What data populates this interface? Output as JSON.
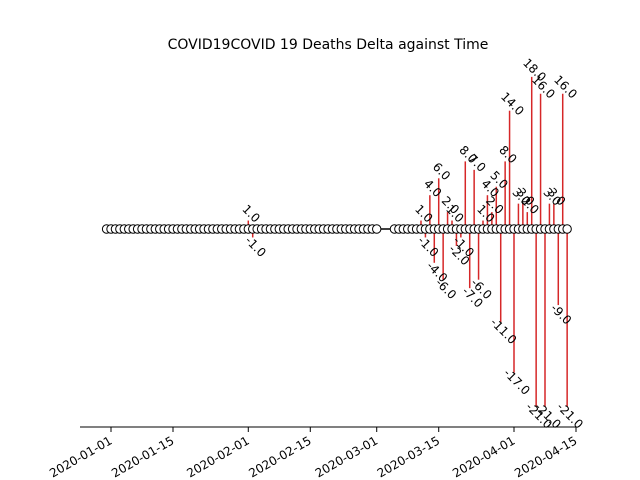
{
  "chart_data": {
    "type": "stem",
    "title": "COVID19COVID 19 Deaths Delta against Time",
    "xlabel": "",
    "ylabel": "",
    "x_axis": {
      "type": "date",
      "range": [
        "2019-12-25",
        "2020-04-15"
      ],
      "ticks": [
        "2020-01-01",
        "2020-01-15",
        "2020-02-01",
        "2020-02-15",
        "2020-03-01",
        "2020-03-15",
        "2020-04-01",
        "2020-04-15"
      ],
      "tick_rotation_deg": 30
    },
    "y_axis": {
      "range": [
        -21,
        18
      ],
      "visible": false
    },
    "grid": false,
    "stem_color": "#d62728",
    "baseline_color": "#000000",
    "marker": {
      "shape": "circle",
      "fill": "#ffffff",
      "stroke": "#000000"
    },
    "points": [
      {
        "date": "2019-12-31",
        "value": 0
      },
      {
        "date": "2020-01-01",
        "value": 0
      },
      {
        "date": "2020-01-02",
        "value": 0
      },
      {
        "date": "2020-01-03",
        "value": 0
      },
      {
        "date": "2020-01-04",
        "value": 0
      },
      {
        "date": "2020-01-05",
        "value": 0
      },
      {
        "date": "2020-01-06",
        "value": 0
      },
      {
        "date": "2020-01-07",
        "value": 0
      },
      {
        "date": "2020-01-08",
        "value": 0
      },
      {
        "date": "2020-01-09",
        "value": 0
      },
      {
        "date": "2020-01-10",
        "value": 0
      },
      {
        "date": "2020-01-11",
        "value": 0
      },
      {
        "date": "2020-01-12",
        "value": 0
      },
      {
        "date": "2020-01-13",
        "value": 0
      },
      {
        "date": "2020-01-14",
        "value": 0
      },
      {
        "date": "2020-01-15",
        "value": 0
      },
      {
        "date": "2020-01-16",
        "value": 0
      },
      {
        "date": "2020-01-17",
        "value": 0
      },
      {
        "date": "2020-01-18",
        "value": 0
      },
      {
        "date": "2020-01-19",
        "value": 0
      },
      {
        "date": "2020-01-20",
        "value": 0
      },
      {
        "date": "2020-01-21",
        "value": 0
      },
      {
        "date": "2020-01-22",
        "value": 0
      },
      {
        "date": "2020-01-23",
        "value": 0
      },
      {
        "date": "2020-01-24",
        "value": 0
      },
      {
        "date": "2020-01-25",
        "value": 0
      },
      {
        "date": "2020-01-26",
        "value": 0
      },
      {
        "date": "2020-01-27",
        "value": 0
      },
      {
        "date": "2020-01-28",
        "value": 0
      },
      {
        "date": "2020-01-29",
        "value": 0
      },
      {
        "date": "2020-01-30",
        "value": 0
      },
      {
        "date": "2020-01-31",
        "value": 0
      },
      {
        "date": "2020-02-01",
        "value": 1,
        "label": "1.0"
      },
      {
        "date": "2020-02-02",
        "value": -1,
        "label": "-1.0"
      },
      {
        "date": "2020-02-03",
        "value": 0
      },
      {
        "date": "2020-02-04",
        "value": 0
      },
      {
        "date": "2020-02-05",
        "value": 0
      },
      {
        "date": "2020-02-06",
        "value": 0
      },
      {
        "date": "2020-02-07",
        "value": 0
      },
      {
        "date": "2020-02-08",
        "value": 0
      },
      {
        "date": "2020-02-09",
        "value": 0
      },
      {
        "date": "2020-02-10",
        "value": 0
      },
      {
        "date": "2020-02-11",
        "value": 0
      },
      {
        "date": "2020-02-12",
        "value": 0
      },
      {
        "date": "2020-02-13",
        "value": 0
      },
      {
        "date": "2020-02-14",
        "value": 0
      },
      {
        "date": "2020-02-15",
        "value": 0
      },
      {
        "date": "2020-02-16",
        "value": 0
      },
      {
        "date": "2020-02-17",
        "value": 0
      },
      {
        "date": "2020-02-18",
        "value": 0
      },
      {
        "date": "2020-02-19",
        "value": 0
      },
      {
        "date": "2020-02-20",
        "value": 0
      },
      {
        "date": "2020-02-21",
        "value": 0
      },
      {
        "date": "2020-02-22",
        "value": 0
      },
      {
        "date": "2020-02-23",
        "value": 0
      },
      {
        "date": "2020-02-24",
        "value": 0
      },
      {
        "date": "2020-02-25",
        "value": 0
      },
      {
        "date": "2020-02-26",
        "value": 0
      },
      {
        "date": "2020-02-27",
        "value": 0
      },
      {
        "date": "2020-02-28",
        "value": 0
      },
      {
        "date": "2020-02-29",
        "value": 0
      },
      {
        "date": "2020-03-01",
        "value": 0
      },
      {
        "date": "2020-03-05",
        "value": 0
      },
      {
        "date": "2020-03-06",
        "value": 0
      },
      {
        "date": "2020-03-07",
        "value": 0
      },
      {
        "date": "2020-03-08",
        "value": 0
      },
      {
        "date": "2020-03-09",
        "value": 0
      },
      {
        "date": "2020-03-10",
        "value": 0
      },
      {
        "date": "2020-03-11",
        "value": 1,
        "label": "1.0"
      },
      {
        "date": "2020-03-12",
        "value": -1,
        "label": "-1.0"
      },
      {
        "date": "2020-03-13",
        "value": 4,
        "label": "4.0"
      },
      {
        "date": "2020-03-14",
        "value": -4,
        "label": "-4.0"
      },
      {
        "date": "2020-03-15",
        "value": 6,
        "label": "6.0"
      },
      {
        "date": "2020-03-16",
        "value": -6,
        "label": "-6.0"
      },
      {
        "date": "2020-03-17",
        "value": 2,
        "label": "2.0"
      },
      {
        "date": "2020-03-18",
        "value": 1,
        "label": "1.0"
      },
      {
        "date": "2020-03-19",
        "value": -2,
        "label": "-2.0"
      },
      {
        "date": "2020-03-20",
        "value": -1,
        "label": "-1.0"
      },
      {
        "date": "2020-03-21",
        "value": 8,
        "label": "8.0"
      },
      {
        "date": "2020-03-22",
        "value": -7,
        "label": "-7.0"
      },
      {
        "date": "2020-03-23",
        "value": 7,
        "label": "7.0"
      },
      {
        "date": "2020-03-24",
        "value": -6,
        "label": "-6.0"
      },
      {
        "date": "2020-03-25",
        "value": 1,
        "label": "1.0"
      },
      {
        "date": "2020-03-26",
        "value": 4,
        "label": "4.0"
      },
      {
        "date": "2020-03-27",
        "value": 2,
        "label": "2.0"
      },
      {
        "date": "2020-03-28",
        "value": 5,
        "label": "5.0"
      },
      {
        "date": "2020-03-29",
        "value": -11,
        "label": "-11.0"
      },
      {
        "date": "2020-03-30",
        "value": 8,
        "label": "8.0"
      },
      {
        "date": "2020-03-31",
        "value": 14,
        "label": "14.0"
      },
      {
        "date": "2020-04-01",
        "value": -17,
        "label": "-17.0"
      },
      {
        "date": "2020-04-02",
        "value": 3,
        "label": "3.0"
      },
      {
        "date": "2020-04-03",
        "value": 3,
        "label": "3.0"
      },
      {
        "date": "2020-04-04",
        "value": 2,
        "label": "2.0"
      },
      {
        "date": "2020-04-05",
        "value": 18,
        "label": "18.0"
      },
      {
        "date": "2020-04-06",
        "value": -21,
        "label": "-21.0"
      },
      {
        "date": "2020-04-07",
        "value": 16,
        "label": "16.0"
      },
      {
        "date": "2020-04-08",
        "value": -21,
        "label": "-21.0"
      },
      {
        "date": "2020-04-09",
        "value": 3,
        "label": "3.0"
      },
      {
        "date": "2020-04-10",
        "value": 3,
        "label": "3.0"
      },
      {
        "date": "2020-04-11",
        "value": -9,
        "label": "-9.0"
      },
      {
        "date": "2020-04-12",
        "value": 16,
        "label": "16.0"
      },
      {
        "date": "2020-04-13",
        "value": -21,
        "label": "-21.0"
      }
    ]
  }
}
